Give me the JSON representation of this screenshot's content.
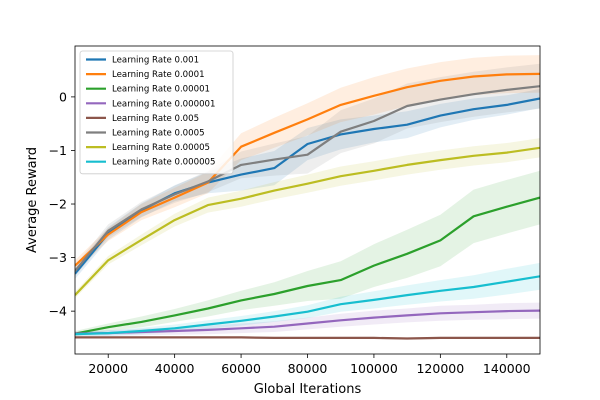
{
  "chart_data": {
    "type": "line",
    "xlabel": "Global Iterations",
    "ylabel": "Average Reward",
    "xlim": [
      10000,
      150000
    ],
    "ylim": [
      -4.8,
      0.95
    ],
    "xticks": [
      20000,
      40000,
      60000,
      80000,
      100000,
      120000,
      140000
    ],
    "xtick_labels": [
      "20000",
      "40000",
      "60000",
      "80000",
      "100000",
      "120000",
      "140000"
    ],
    "yticks": [
      0,
      -1,
      -2,
      -3,
      -4
    ],
    "ytick_labels": [
      "0",
      "−1",
      "−2",
      "−3",
      "−4"
    ],
    "legend_position": "top-left",
    "grid": false,
    "x": [
      10000,
      20000,
      30000,
      40000,
      50000,
      60000,
      70000,
      80000,
      90000,
      100000,
      110000,
      120000,
      130000,
      140000,
      150000
    ],
    "series": [
      {
        "name": "Learning Rate 0.001",
        "color": "#1f77b4",
        "values": [
          -3.3,
          -2.55,
          -2.12,
          -1.8,
          -1.6,
          -1.45,
          -1.33,
          -0.88,
          -0.7,
          -0.6,
          -0.52,
          -0.35,
          -0.23,
          -0.15,
          -0.03
        ],
        "spread": [
          0.1,
          0.12,
          0.13,
          0.15,
          0.2,
          0.3,
          0.32,
          0.3,
          0.28,
          0.25,
          0.25,
          0.22,
          0.2,
          0.18,
          0.18
        ]
      },
      {
        "name": "Learning Rate 0.0001",
        "color": "#ff7f0e",
        "values": [
          -3.15,
          -2.57,
          -2.15,
          -1.88,
          -1.6,
          -0.93,
          -0.67,
          -0.42,
          -0.15,
          0.02,
          0.18,
          0.3,
          0.38,
          0.42,
          0.43
        ],
        "spread": [
          0.1,
          0.12,
          0.15,
          0.18,
          0.2,
          0.25,
          0.28,
          0.3,
          0.32,
          0.35,
          0.35,
          0.35,
          0.35,
          0.35,
          0.35
        ]
      },
      {
        "name": "Learning Rate 0.00001",
        "color": "#2ca02c",
        "values": [
          -4.42,
          -4.3,
          -4.2,
          -4.08,
          -3.95,
          -3.8,
          -3.68,
          -3.53,
          -3.42,
          -3.15,
          -2.93,
          -2.68,
          -2.23,
          -2.05,
          -1.88
        ],
        "spread": [
          0.05,
          0.07,
          0.1,
          0.12,
          0.15,
          0.18,
          0.22,
          0.28,
          0.35,
          0.4,
          0.45,
          0.48,
          0.5,
          0.5,
          0.5
        ]
      },
      {
        "name": "Learning Rate 0.000001",
        "color": "#9467bd",
        "values": [
          -4.42,
          -4.41,
          -4.39,
          -4.37,
          -4.35,
          -4.32,
          -4.29,
          -4.23,
          -4.17,
          -4.12,
          -4.08,
          -4.04,
          -4.02,
          -4.0,
          -3.99
        ],
        "spread": [
          0.04,
          0.05,
          0.06,
          0.07,
          0.08,
          0.09,
          0.1,
          0.11,
          0.12,
          0.13,
          0.13,
          0.14,
          0.14,
          0.15,
          0.15
        ]
      },
      {
        "name": "Learning Rate 0.005",
        "color": "#8c564b",
        "values": [
          -4.49,
          -4.49,
          -4.49,
          -4.49,
          -4.49,
          -4.49,
          -4.5,
          -4.5,
          -4.5,
          -4.5,
          -4.51,
          -4.5,
          -4.5,
          -4.5,
          -4.5
        ],
        "spread": [
          0.02,
          0.02,
          0.02,
          0.02,
          0.02,
          0.02,
          0.02,
          0.02,
          0.02,
          0.02,
          0.02,
          0.02,
          0.02,
          0.02,
          0.02
        ]
      },
      {
        "name": "Learning Rate 0.0005",
        "color": "#7f7f7f",
        "values": [
          -3.25,
          -2.5,
          -2.1,
          -1.82,
          -1.58,
          -1.27,
          -1.17,
          -1.08,
          -0.65,
          -0.45,
          -0.17,
          -0.05,
          0.05,
          0.13,
          0.2
        ],
        "spread": [
          0.1,
          0.12,
          0.14,
          0.16,
          0.2,
          0.25,
          0.3,
          0.35,
          0.4,
          0.42,
          0.42,
          0.42,
          0.42,
          0.42,
          0.42
        ]
      },
      {
        "name": "Learning Rate 0.00005",
        "color": "#bcbd22",
        "values": [
          -3.7,
          -3.05,
          -2.67,
          -2.3,
          -2.02,
          -1.9,
          -1.75,
          -1.62,
          -1.48,
          -1.38,
          -1.27,
          -1.18,
          -1.1,
          -1.04,
          -0.95
        ],
        "spread": [
          0.06,
          0.08,
          0.1,
          0.12,
          0.14,
          0.15,
          0.16,
          0.17,
          0.18,
          0.18,
          0.18,
          0.18,
          0.18,
          0.18,
          0.18
        ]
      },
      {
        "name": "Learning Rate 0.000005",
        "color": "#17becf",
        "values": [
          -4.43,
          -4.41,
          -4.37,
          -4.32,
          -4.25,
          -4.18,
          -4.1,
          -4.01,
          -3.87,
          -3.79,
          -3.7,
          -3.62,
          -3.55,
          -3.45,
          -3.35
        ],
        "spread": [
          0.04,
          0.05,
          0.06,
          0.07,
          0.08,
          0.09,
          0.1,
          0.12,
          0.14,
          0.16,
          0.18,
          0.2,
          0.22,
          0.24,
          0.25
        ]
      }
    ]
  }
}
